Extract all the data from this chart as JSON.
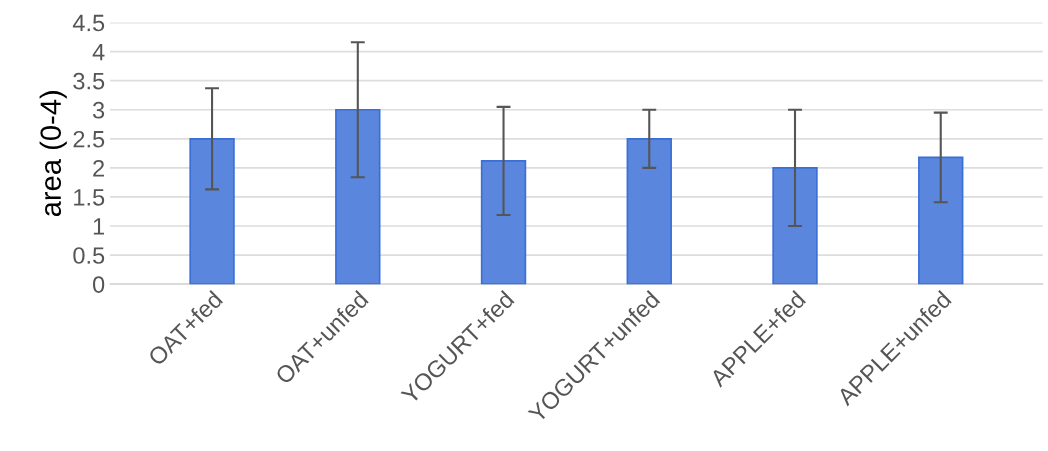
{
  "chart_data": {
    "type": "bar",
    "ylabel": "area (0-4)",
    "categories": [
      "OAT+fed",
      "OAT+unfed",
      "YOGURT+fed",
      "YOGURT+unfed",
      "APPLE+fed",
      "APPLE+unfed"
    ],
    "values": [
      2.5,
      3.0,
      2.12,
      2.5,
      2.0,
      2.18
    ],
    "errors": [
      0.87,
      1.16,
      0.93,
      0.5,
      1.0,
      0.77
    ],
    "color": "#5a86dd",
    "ylim": [
      0,
      4.5
    ],
    "yticks": [
      0,
      0.5,
      1,
      1.5,
      2,
      2.5,
      3,
      3.5,
      4,
      4.5
    ],
    "grid": "y"
  }
}
